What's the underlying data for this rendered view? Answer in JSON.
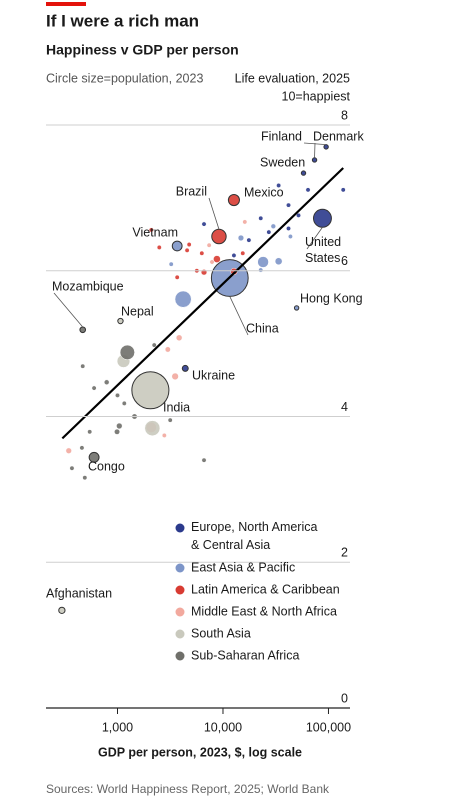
{
  "chart_data": {
    "type": "bubble",
    "title": "If I were a rich man",
    "subtitle": "Happiness v GDP per person",
    "size_note": "Circle size=population, 2023",
    "y_label": "Life evaluation, 2025",
    "y_note": "10=happiest",
    "x_label": "GDP per person, 2023, $, log scale",
    "source": "Sources: World Happiness Report, 2025; World Bank",
    "x_scale": "log",
    "xlim": [
      210,
      160000
    ],
    "xticks": [
      {
        "value": 1000,
        "label": "1,000"
      },
      {
        "value": 10000,
        "label": "10,000"
      },
      {
        "value": 100000,
        "label": "100,000"
      }
    ],
    "ylim": [
      0,
      8
    ],
    "yticks": [
      0,
      2,
      4,
      6,
      8
    ],
    "grid": true,
    "legend": "center",
    "trend_line": {
      "color": "#000000",
      "x": [
        300,
        138000
      ],
      "values": [
        3.7,
        7.41
      ]
    },
    "series": [
      {
        "name": "Europe, North America & Central Asia",
        "color": "#2b3a8c",
        "x": [
          95000,
          73800,
          58000,
          87700,
          4390,
          41800,
          22800,
          41800,
          17600,
          12700,
          27200,
          52000,
          6610,
          64000,
          33700,
          138000
        ],
        "values": [
          7.7,
          7.52,
          7.34,
          6.72,
          4.66,
          6.9,
          6.72,
          6.58,
          6.42,
          6.21,
          6.53,
          6.76,
          6.64,
          7.11,
          7.17,
          7.11
        ],
        "sizes": [
          5.6,
          5.9,
          10.5,
          335,
          37,
          10,
          10,
          17,
          19,
          9,
          8,
          11,
          3,
          10,
          5,
          0.7
        ],
        "labels": [
          "Finland",
          "Denmark",
          "Sweden",
          "United States",
          "Ukraine",
          null,
          null,
          null,
          null,
          null,
          null,
          null,
          null,
          null,
          null,
          null
        ]
      },
      {
        "name": "East Asia & Pacific",
        "color": "#7d95c8",
        "x": [
          11600,
          3680,
          49900,
          3230,
          4190,
          14800,
          33700,
          22800,
          43600,
          30000,
          24000
        ],
        "values": [
          5.9,
          6.34,
          5.49,
          6.09,
          5.61,
          6.45,
          6.13,
          6.01,
          6.47,
          6.61,
          6.12
        ],
        "sizes": [
          1410,
          100,
          7.5,
          20,
          277,
          34,
          52,
          6,
          5.9,
          24,
          124
        ],
        "labels": [
          "China",
          "Vietnam",
          "Hong Kong",
          null,
          null,
          null,
          null,
          null,
          null,
          null,
          null
        ]
      },
      {
        "name": "Latin America & Caribbean",
        "color": "#d83b32",
        "x": [
          12700,
          9160,
          2090,
          2490,
          4780,
          6610,
          5650,
          6300,
          3680,
          15400,
          8760,
          12700,
          4570
        ],
        "values": [
          6.97,
          6.47,
          6.56,
          6.32,
          6.36,
          5.98,
          6.0,
          6.24,
          5.91,
          6.24,
          6.16,
          5.99,
          6.28
        ],
        "sizes": [
          128,
          216,
          6,
          10,
          10,
          34,
          18,
          7,
          11,
          19,
          52,
          46,
          6
        ],
        "labels": [
          "Mexico",
          "Brazil",
          null,
          null,
          null,
          null,
          null,
          null,
          null,
          null,
          null,
          null,
          null
        ]
      },
      {
        "name": "Middle East & North Africa",
        "color": "#f2a99e",
        "x": [
          3840,
          3520,
          2090,
          2780,
          7870,
          16100,
          345,
          7390,
          3000
        ],
        "values": [
          5.08,
          4.55,
          3.85,
          3.74,
          6.12,
          6.67,
          3.53,
          6.35,
          4.92
        ],
        "sizes": [
          37,
          47,
          113,
          12,
          5,
          9,
          34,
          10,
          30
        ]
      },
      {
        "name": "South Asia",
        "color": "#c9c9bd",
        "x": [
          2050,
          1067,
          297,
          1140,
          2140
        ],
        "values": [
          4.36,
          5.31,
          1.34,
          4.76,
          3.84
        ],
        "sizes": [
          1430,
          30,
          41,
          170,
          240
        ],
        "labels": [
          "India",
          "Nepal",
          "Afghanistan",
          null,
          null
        ]
      },
      {
        "name": "Sub-Saharan Africa",
        "color": "#6f6f6a",
        "x": [
          468,
          600,
          1240,
          468,
          600,
          790,
          1000,
          1040,
          990,
          545,
          460,
          2230,
          1160,
          3160,
          6610,
          490,
          370,
          1450
        ],
        "values": [
          5.19,
          3.44,
          4.88,
          4.69,
          4.39,
          4.47,
          4.29,
          3.87,
          3.79,
          3.79,
          3.57,
          4.98,
          4.18,
          3.95,
          3.4,
          3.16,
          3.29,
          4.0
        ],
        "sizes": [
          33,
          102,
          220,
          20,
          15,
          25,
          12,
          35,
          30,
          10,
          12,
          8,
          20,
          5,
          2,
          15,
          10,
          30
        ],
        "labels": [
          "Mozambique",
          "Congo",
          null,
          null,
          null,
          null,
          null,
          null,
          null,
          null,
          null,
          null,
          null,
          null,
          null,
          null,
          null,
          null
        ]
      }
    ]
  }
}
